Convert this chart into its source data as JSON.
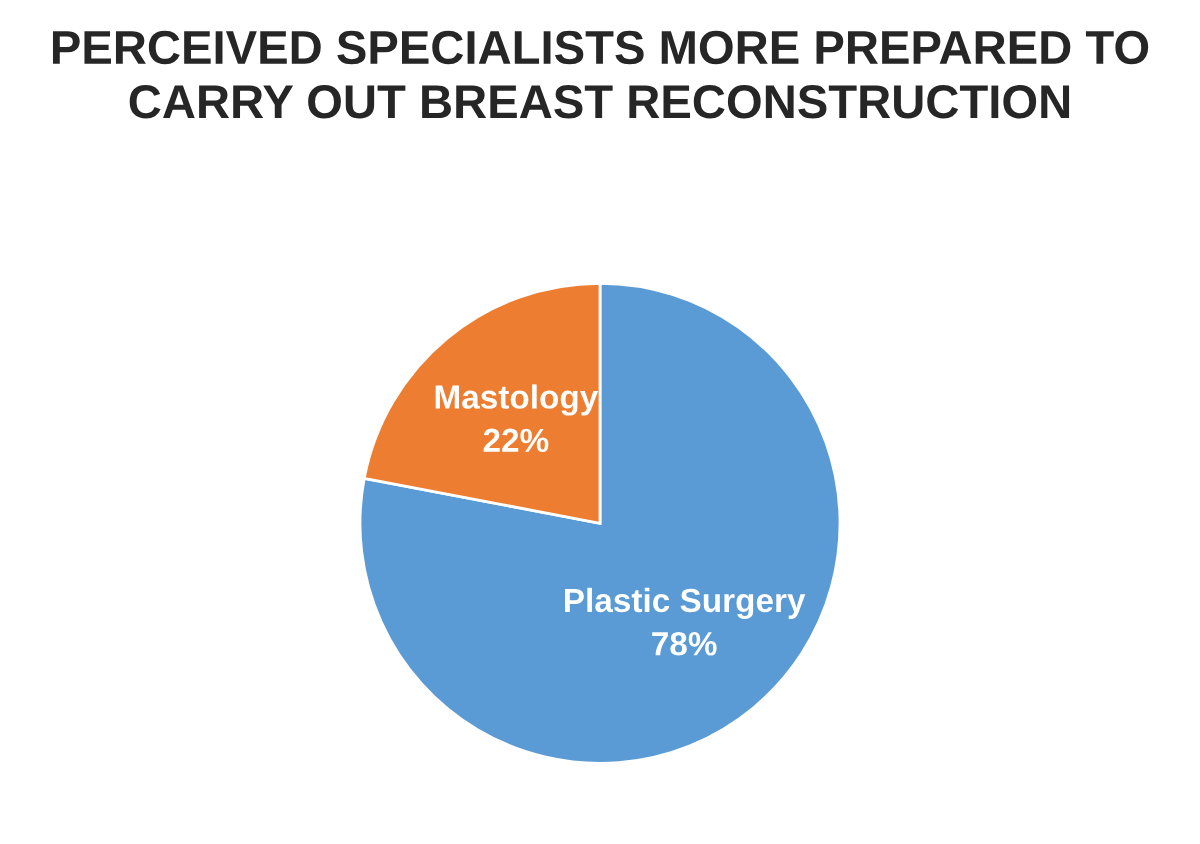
{
  "chart_data": {
    "type": "pie",
    "title": "PERCEIVED SPECIALISTS MORE PREPARED TO\nCARRY OUT BREAST RECONSTRUCTION",
    "categories": [
      "Plastic Surgery",
      "Mastology"
    ],
    "values": [
      78,
      22
    ],
    "value_labels": [
      "78%",
      "22%"
    ],
    "colors": [
      "#5b9bd5",
      "#ed7d31"
    ],
    "legend": false
  }
}
